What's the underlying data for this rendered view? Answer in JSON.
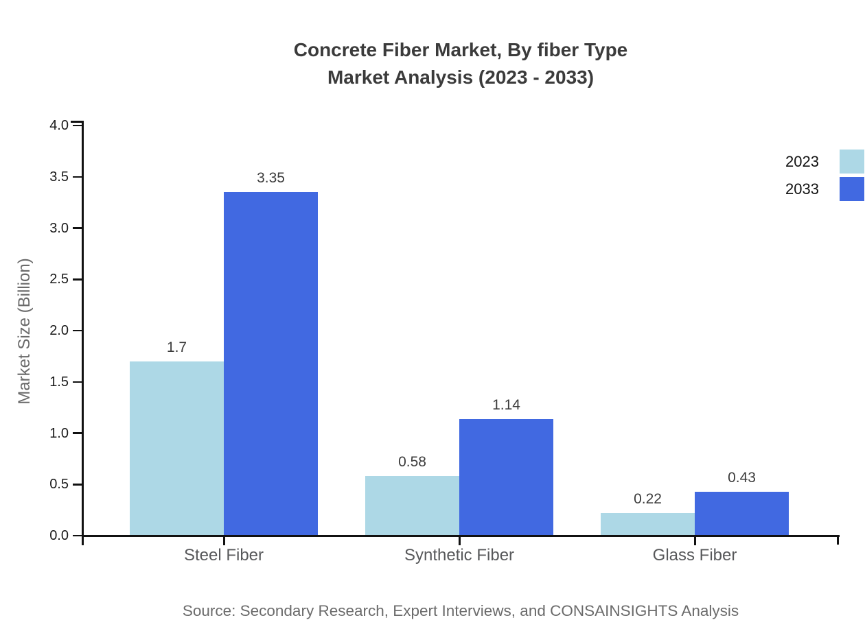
{
  "chart_data": {
    "type": "bar",
    "title": "Concrete Fiber Market, By fiber Type",
    "subtitle": "Market Analysis (2023 - 2033)",
    "categories": [
      "Steel Fiber",
      "Synthetic Fiber",
      "Glass Fiber"
    ],
    "series": [
      {
        "name": "2023",
        "color": "#ADD8E6",
        "values": [
          1.7,
          0.58,
          0.22
        ]
      },
      {
        "name": "2033",
        "color": "#4169E1",
        "values": [
          3.35,
          1.14,
          0.43
        ]
      }
    ],
    "value_labels": [
      "1.7",
      "3.35",
      "0.58",
      "1.14",
      "0.22",
      "0.43"
    ],
    "xlabel": "",
    "ylabel": "Market Size (Billion)",
    "ylim": [
      0,
      4
    ],
    "ytick_step": 0.5,
    "grid": false,
    "legend_position": "top-right",
    "bar_value_labels_shown": true
  },
  "source": {
    "text": "Source: Secondary Research, Expert Interviews, and CONSAINSIGHTS Analysis"
  },
  "colors": {
    "axis": "#111111",
    "title_text": "#3b3b3b",
    "ytick_text": "#1a1a1a",
    "category_text": "#58595b",
    "value_label_text": "#3b3b3b",
    "axis_title_text": "#6a6a6a",
    "source_text": "#6b6b6b",
    "legend_text": "#111111",
    "series_2023": "#ADD8E6",
    "series_2033": "#4169E1"
  }
}
